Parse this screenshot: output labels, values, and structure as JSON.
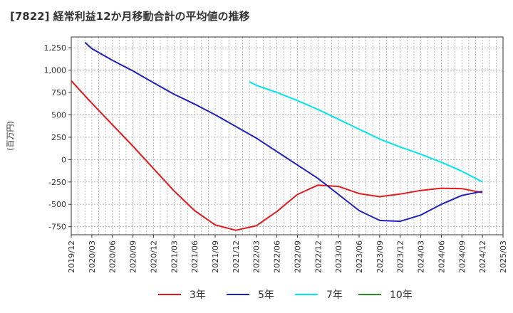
{
  "chart_data": {
    "type": "line",
    "title": "[7822]  経常利益12か月移動合計の平均値の推移",
    "ylabel": "(百万円)",
    "xlabel": "",
    "ylim": [
      -840,
      1370
    ],
    "xlim": [
      "2019-12",
      "2025-03"
    ],
    "y_ticks": [
      1250,
      1000,
      750,
      500,
      250,
      0,
      -250,
      -500,
      -750
    ],
    "y_tick_labels": [
      "1,250",
      "1,000",
      "750",
      "500",
      "250",
      "0",
      "-250",
      "-500",
      "-750"
    ],
    "x_ticks": [
      "2019-12",
      "2020-03",
      "2020-06",
      "2020-09",
      "2020-12",
      "2021-03",
      "2021-06",
      "2021-09",
      "2021-12",
      "2022-03",
      "2022-06",
      "2022-09",
      "2022-12",
      "2023-03",
      "2023-06",
      "2023-09",
      "2023-12",
      "2024-03",
      "2024-06",
      "2024-09",
      "2024-12",
      "2025-03"
    ],
    "x_tick_labels": [
      "2019/12",
      "2020/03",
      "2020/06",
      "2020/09",
      "2020/12",
      "2021/03",
      "2021/06",
      "2021/09",
      "2021/12",
      "2022/03",
      "2022/06",
      "2022/09",
      "2022/12",
      "2023/03",
      "2023/06",
      "2023/09",
      "2023/12",
      "2024/03",
      "2024/06",
      "2024/09",
      "2024/12",
      "2025/03"
    ],
    "grid": true,
    "legend_position": "bottom",
    "series": [
      {
        "name": "3年",
        "color": "#e31a1c",
        "points": [
          [
            "2019-12",
            880
          ],
          [
            "2020-03",
            630
          ],
          [
            "2020-06",
            390
          ],
          [
            "2020-09",
            150
          ],
          [
            "2020-12",
            -100
          ],
          [
            "2021-03",
            -350
          ],
          [
            "2021-06",
            -570
          ],
          [
            "2021-09",
            -730
          ],
          [
            "2021-12",
            -790
          ],
          [
            "2022-03",
            -740
          ],
          [
            "2022-06",
            -580
          ],
          [
            "2022-09",
            -390
          ],
          [
            "2022-12",
            -285
          ],
          [
            "2023-03",
            -300
          ],
          [
            "2023-06",
            -380
          ],
          [
            "2023-09",
            -415
          ],
          [
            "2023-12",
            -385
          ],
          [
            "2024-03",
            -345
          ],
          [
            "2024-06",
            -320
          ],
          [
            "2024-09",
            -325
          ],
          [
            "2024-12",
            -370
          ]
        ]
      },
      {
        "name": "5年",
        "color": "#1f1fbf",
        "points": [
          [
            "2020-02",
            1310
          ],
          [
            "2020-03",
            1240
          ],
          [
            "2020-06",
            1110
          ],
          [
            "2020-09",
            990
          ],
          [
            "2020-12",
            860
          ],
          [
            "2021-03",
            730
          ],
          [
            "2021-06",
            620
          ],
          [
            "2021-09",
            500
          ],
          [
            "2021-12",
            370
          ],
          [
            "2022-03",
            240
          ],
          [
            "2022-06",
            90
          ],
          [
            "2022-09",
            -60
          ],
          [
            "2022-12",
            -210
          ],
          [
            "2023-03",
            -390
          ],
          [
            "2023-06",
            -570
          ],
          [
            "2023-09",
            -680
          ],
          [
            "2023-12",
            -690
          ],
          [
            "2024-03",
            -620
          ],
          [
            "2024-06",
            -500
          ],
          [
            "2024-09",
            -400
          ],
          [
            "2024-12",
            -355
          ]
        ]
      },
      {
        "name": "7年",
        "color": "#00e5ee",
        "points": [
          [
            "2022-02",
            870
          ],
          [
            "2022-03",
            830
          ],
          [
            "2022-06",
            750
          ],
          [
            "2022-09",
            660
          ],
          [
            "2022-12",
            560
          ],
          [
            "2023-03",
            450
          ],
          [
            "2023-06",
            340
          ],
          [
            "2023-09",
            230
          ],
          [
            "2023-12",
            140
          ],
          [
            "2024-03",
            60
          ],
          [
            "2024-06",
            -30
          ],
          [
            "2024-09",
            -130
          ],
          [
            "2024-12",
            -250
          ]
        ]
      },
      {
        "name": "10年",
        "color": "#2e8b2e",
        "points": []
      }
    ]
  }
}
